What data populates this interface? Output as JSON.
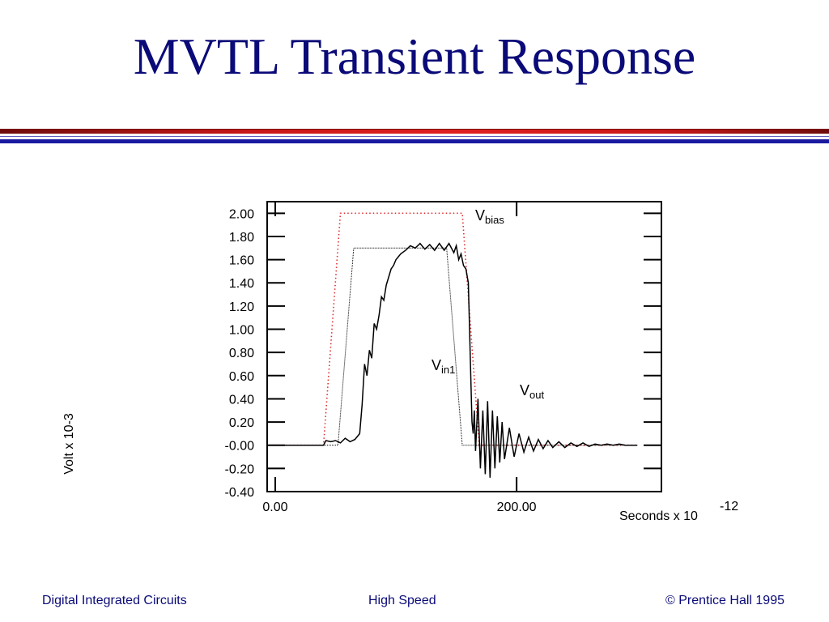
{
  "slide": {
    "title": "MVTL Transient Response",
    "footer_left": "Digital Integrated Circuits",
    "footer_center": "High Speed",
    "footer_right": "© Prentice Hall 1995"
  },
  "colors": {
    "title": "#0a0a78",
    "rule_red": "#d01818",
    "rule_blue": "#1a1aa0",
    "vbias": "#e03030",
    "vin1": "#000000",
    "vout": "#000000"
  },
  "chart_data": {
    "type": "line",
    "ylabel": "Volt x 10-3",
    "xlabel_main": "Seconds x 10",
    "xlabel_exp": "-12",
    "xlim": [
      -6.7,
      320
    ],
    "ylim": [
      -0.4,
      2.1
    ],
    "x_ticks": [
      {
        "value": 0,
        "label": "0.00"
      },
      {
        "value": 200,
        "label": "200.00"
      }
    ],
    "y_ticks": [
      {
        "value": 2.0,
        "label": "2.00"
      },
      {
        "value": 1.8,
        "label": "1.80"
      },
      {
        "value": 1.6,
        "label": "1.60"
      },
      {
        "value": 1.4,
        "label": "1.40"
      },
      {
        "value": 1.2,
        "label": "1.20"
      },
      {
        "value": 1.0,
        "label": "1.00"
      },
      {
        "value": 0.8,
        "label": "0.80"
      },
      {
        "value": 0.6,
        "label": "0.60"
      },
      {
        "value": 0.4,
        "label": "0.40"
      },
      {
        "value": 0.2,
        "label": "0.20"
      },
      {
        "value": 0.0,
        "label": "-0.00"
      },
      {
        "value": -0.2,
        "label": "-0.20"
      },
      {
        "value": -0.4,
        "label": "-0.40"
      }
    ],
    "grid": false,
    "series": [
      {
        "name": "Vbias",
        "label_main": "V",
        "label_sub": "bias",
        "style": "dotted",
        "x": [
          0,
          40,
          54,
          155,
          169,
          300
        ],
        "y": [
          0.0,
          0.0,
          2.0,
          2.0,
          0.0,
          0.0
        ]
      },
      {
        "name": "Vin1",
        "label_main": "V",
        "label_sub": "in1",
        "style": "thin",
        "x": [
          0,
          52,
          65,
          142,
          155,
          300
        ],
        "y": [
          0.0,
          0.0,
          1.7,
          1.7,
          0.0,
          0.0
        ]
      },
      {
        "name": "Vout",
        "label_main": "V",
        "label_sub": "out",
        "style": "solid",
        "x": [
          0,
          40,
          42,
          46,
          50,
          54,
          58,
          62,
          66,
          70,
          72,
          74,
          76,
          78,
          80,
          82,
          84,
          86,
          88,
          90,
          92,
          94,
          96,
          98,
          100,
          104,
          108,
          112,
          116,
          120,
          124,
          128,
          132,
          136,
          140,
          144,
          148,
          150,
          152,
          154,
          156,
          158,
          160,
          161,
          162,
          163,
          164,
          165,
          166,
          168,
          170,
          172,
          174,
          176,
          178,
          180,
          182,
          184,
          186,
          188,
          190,
          194,
          198,
          202,
          206,
          210,
          214,
          218,
          222,
          226,
          230,
          235,
          240,
          245,
          250,
          255,
          260,
          265,
          270,
          275,
          280,
          285,
          290,
          300
        ],
        "y": [
          0.0,
          0.0,
          0.04,
          0.03,
          0.04,
          0.02,
          0.06,
          0.03,
          0.05,
          0.1,
          0.35,
          0.7,
          0.6,
          0.82,
          0.75,
          1.05,
          1.0,
          1.12,
          1.28,
          1.25,
          1.38,
          1.45,
          1.52,
          1.55,
          1.6,
          1.65,
          1.68,
          1.72,
          1.7,
          1.74,
          1.69,
          1.73,
          1.68,
          1.74,
          1.68,
          1.74,
          1.66,
          1.72,
          1.6,
          1.65,
          1.55,
          1.52,
          1.4,
          1.0,
          0.6,
          0.2,
          0.1,
          0.3,
          -0.05,
          0.4,
          -0.2,
          0.3,
          -0.25,
          0.38,
          -0.28,
          0.3,
          -0.2,
          0.25,
          -0.15,
          0.2,
          -0.12,
          0.15,
          -0.1,
          0.1,
          -0.06,
          0.07,
          -0.05,
          0.05,
          -0.03,
          0.04,
          -0.02,
          0.03,
          -0.02,
          0.02,
          -0.01,
          0.02,
          -0.01,
          0.01,
          0.0,
          0.01,
          0.0,
          0.01,
          0.0,
          0.0
        ]
      }
    ]
  }
}
